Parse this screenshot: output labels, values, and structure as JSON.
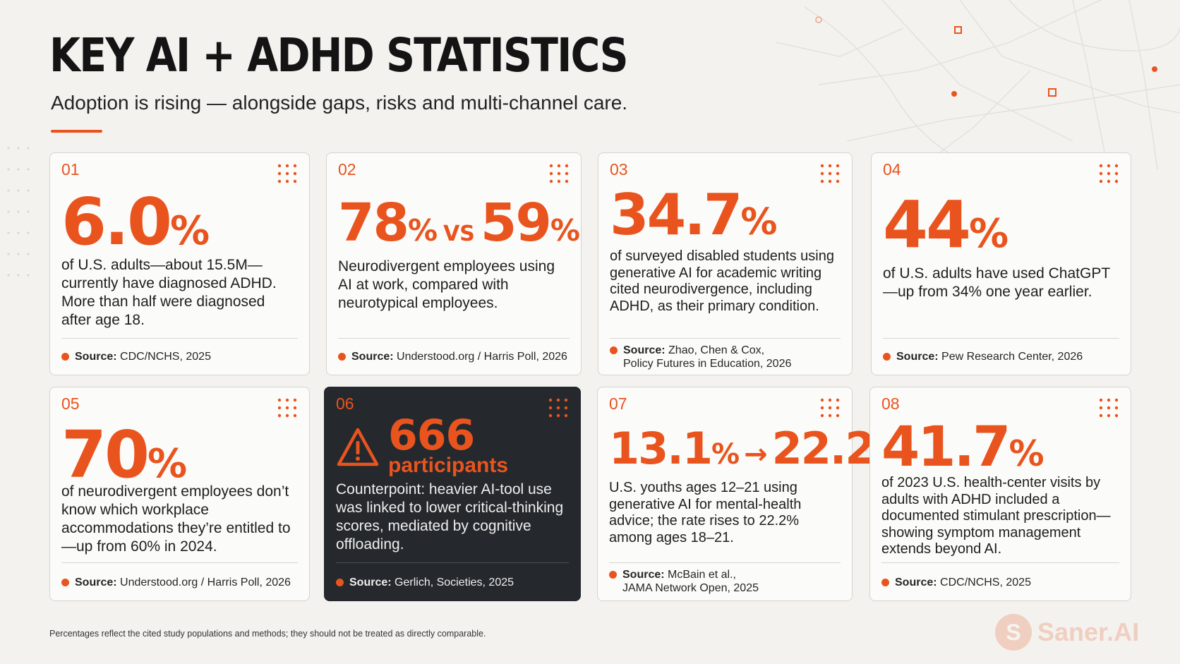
{
  "header": {
    "title": "KEY AI + ADHD STATISTICS",
    "subtitle": "Adoption is rising — alongside gaps, risks and multi-channel care."
  },
  "cards": [
    {
      "num": "01",
      "stat_value": "6.0",
      "stat_unit": "%",
      "description": "of U.S. adults—about 15.5M—currently have diagnosed ADHD. More than half were diagnosed after age 18.",
      "source_label": "Source:",
      "source_lines": [
        "CDC/NCHS, 2025"
      ]
    },
    {
      "num": "02",
      "stat_a": "78",
      "stat_a_unit": "%",
      "stat_vs": "VS",
      "stat_b": "59",
      "stat_b_unit": "%",
      "description": "Neurodivergent employees using AI at work, compared with neurotypical employees.",
      "source_label": "Source:",
      "source_lines": [
        "Understood.org / Harris Poll, 2026"
      ]
    },
    {
      "num": "03",
      "stat_value": "34.7",
      "stat_unit": "%",
      "description": "of surveyed disabled students using generative AI for academic writing cited neurodivergence, including ADHD, as their primary condition.",
      "source_label": "Source:",
      "source_lines": [
        "Zhao, Chen & Cox,",
        "Policy Futures in Education, 2026"
      ]
    },
    {
      "num": "04",
      "stat_value": "44",
      "stat_unit": "%",
      "description": "of U.S. adults have used ChatGPT—up from 34% one year earlier.",
      "source_label": "Source:",
      "source_lines": [
        "Pew Research Center, 2026"
      ]
    },
    {
      "num": "05",
      "stat_value": "70",
      "stat_unit": "%",
      "description": "of neurodivergent employees don’t know which workplace accommodations they’re entitled to—up from 60% in 2024.",
      "source_label": "Source:",
      "source_lines": [
        "Understood.org / Harris Poll, 2026"
      ]
    },
    {
      "num": "06",
      "stat_value": "666",
      "stat_label": "participants",
      "description": "Counterpoint: heavier AI-tool use was linked to lower critical-thinking scores, mediated by cognitive offloading.",
      "source_label": "Source:",
      "source_lines": [
        "Gerlich, Societies, 2025"
      ]
    },
    {
      "num": "07",
      "stat_a": "13.1",
      "stat_a_unit": "%",
      "stat_arrow": "→",
      "stat_b": "22.2",
      "stat_b_unit": "%",
      "description": "U.S. youths ages 12–21 using generative AI for mental-health advice; the rate rises to 22.2% among ages 18–21.",
      "source_label": "Source:",
      "source_lines": [
        "McBain et al.,",
        "JAMA Network Open, 2025"
      ]
    },
    {
      "num": "08",
      "stat_value": "41.7",
      "stat_unit": "%",
      "description": "of 2023 U.S. health-center visits by adults with ADHD included a documented stimulant prescription—showing symptom management extends beyond AI.",
      "source_label": "Source:",
      "source_lines": [
        "CDC/NCHS, 2025"
      ]
    }
  ],
  "footer": {
    "note": "Percentages reflect the cited study populations and methods; they should not be treated as directly comparable.",
    "brand": "Saner.AI",
    "brand_initial": "S"
  },
  "colors": {
    "accent": "#e9541e",
    "dark_card": "#25292d",
    "background": "#f3f2ef"
  }
}
